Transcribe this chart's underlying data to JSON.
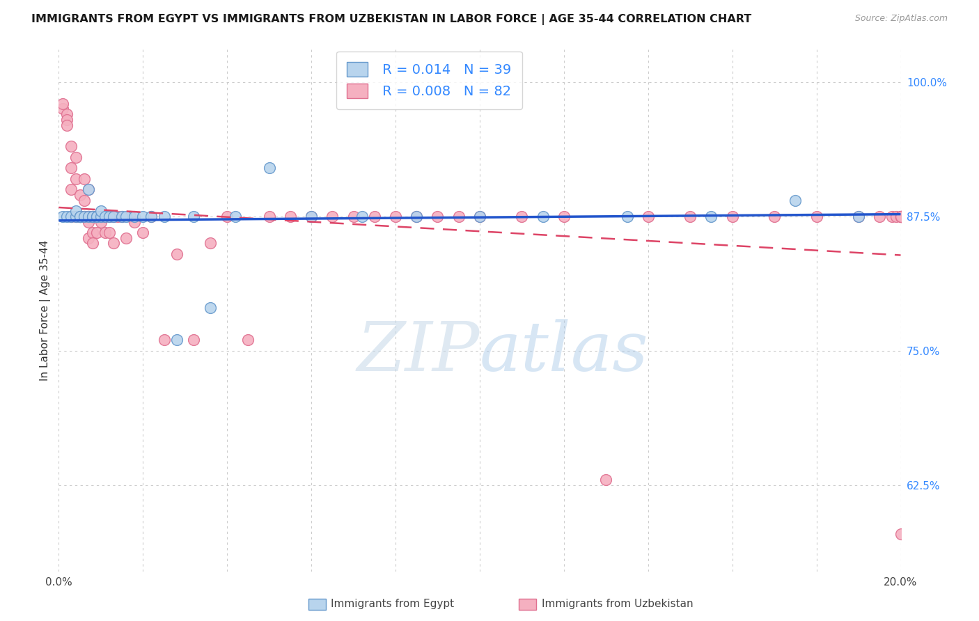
{
  "title": "IMMIGRANTS FROM EGYPT VS IMMIGRANTS FROM UZBEKISTAN IN LABOR FORCE | AGE 35-44 CORRELATION CHART",
  "source": "Source: ZipAtlas.com",
  "ylabel": "In Labor Force | Age 35-44",
  "xlim": [
    0.0,
    0.2
  ],
  "ylim": [
    0.545,
    1.03
  ],
  "ytick_values": [
    0.625,
    0.75,
    0.875,
    1.0
  ],
  "ytick_labels": [
    "62.5%",
    "75.0%",
    "87.5%",
    "100.0%"
  ],
  "egypt_color": "#b8d4ed",
  "uzbekistan_color": "#f5b0c0",
  "egypt_edge_color": "#6699cc",
  "uzbekistan_edge_color": "#e07090",
  "trendline_egypt_color": "#2255cc",
  "trendline_uzbekistan_color": "#dd4466",
  "legend_egypt_R": "0.014",
  "legend_egypt_N": "39",
  "legend_uzbekistan_R": "0.008",
  "legend_uzbekistan_N": "82",
  "watermark_zip": "ZIP",
  "watermark_atlas": "atlas",
  "egypt_x": [
    0.001,
    0.002,
    0.003,
    0.004,
    0.004,
    0.005,
    0.005,
    0.006,
    0.007,
    0.007,
    0.008,
    0.008,
    0.009,
    0.009,
    0.01,
    0.01,
    0.011,
    0.012,
    0.013,
    0.015,
    0.016,
    0.018,
    0.02,
    0.022,
    0.025,
    0.028,
    0.032,
    0.036,
    0.042,
    0.05,
    0.06,
    0.072,
    0.085,
    0.1,
    0.115,
    0.135,
    0.155,
    0.175,
    0.19
  ],
  "egypt_y": [
    0.875,
    0.875,
    0.875,
    0.875,
    0.88,
    0.875,
    0.875,
    0.875,
    0.875,
    0.9,
    0.875,
    0.875,
    0.875,
    0.875,
    0.875,
    0.88,
    0.875,
    0.875,
    0.875,
    0.875,
    0.875,
    0.875,
    0.875,
    0.875,
    0.875,
    0.76,
    0.875,
    0.79,
    0.875,
    0.92,
    0.875,
    0.875,
    0.875,
    0.875,
    0.875,
    0.875,
    0.875,
    0.89,
    0.875
  ],
  "uzbekistan_x": [
    0.001,
    0.001,
    0.002,
    0.002,
    0.002,
    0.003,
    0.003,
    0.003,
    0.003,
    0.004,
    0.004,
    0.004,
    0.005,
    0.005,
    0.005,
    0.005,
    0.006,
    0.006,
    0.006,
    0.007,
    0.007,
    0.007,
    0.007,
    0.007,
    0.008,
    0.008,
    0.008,
    0.008,
    0.009,
    0.009,
    0.009,
    0.01,
    0.01,
    0.01,
    0.011,
    0.011,
    0.012,
    0.012,
    0.013,
    0.013,
    0.014,
    0.015,
    0.016,
    0.017,
    0.018,
    0.02,
    0.022,
    0.025,
    0.028,
    0.032,
    0.036,
    0.04,
    0.045,
    0.05,
    0.055,
    0.06,
    0.065,
    0.07,
    0.075,
    0.08,
    0.085,
    0.09,
    0.095,
    0.1,
    0.11,
    0.12,
    0.13,
    0.14,
    0.15,
    0.16,
    0.17,
    0.18,
    0.19,
    0.195,
    0.198,
    0.199,
    0.2,
    0.2,
    0.2,
    0.2,
    0.2,
    0.2
  ],
  "uzbekistan_y": [
    0.975,
    0.98,
    0.97,
    0.965,
    0.96,
    0.94,
    0.92,
    0.9,
    0.875,
    0.93,
    0.91,
    0.875,
    0.895,
    0.875,
    0.875,
    0.875,
    0.91,
    0.89,
    0.875,
    0.9,
    0.875,
    0.875,
    0.87,
    0.855,
    0.875,
    0.875,
    0.86,
    0.85,
    0.875,
    0.875,
    0.86,
    0.875,
    0.875,
    0.87,
    0.875,
    0.86,
    0.875,
    0.86,
    0.875,
    0.85,
    0.875,
    0.875,
    0.855,
    0.875,
    0.87,
    0.86,
    0.875,
    0.76,
    0.84,
    0.76,
    0.85,
    0.875,
    0.76,
    0.875,
    0.875,
    0.875,
    0.875,
    0.875,
    0.875,
    0.875,
    0.875,
    0.875,
    0.875,
    0.875,
    0.875,
    0.875,
    0.63,
    0.875,
    0.875,
    0.875,
    0.875,
    0.875,
    0.875,
    0.875,
    0.875,
    0.875,
    0.875,
    0.875,
    0.875,
    0.875,
    0.875,
    0.58
  ]
}
